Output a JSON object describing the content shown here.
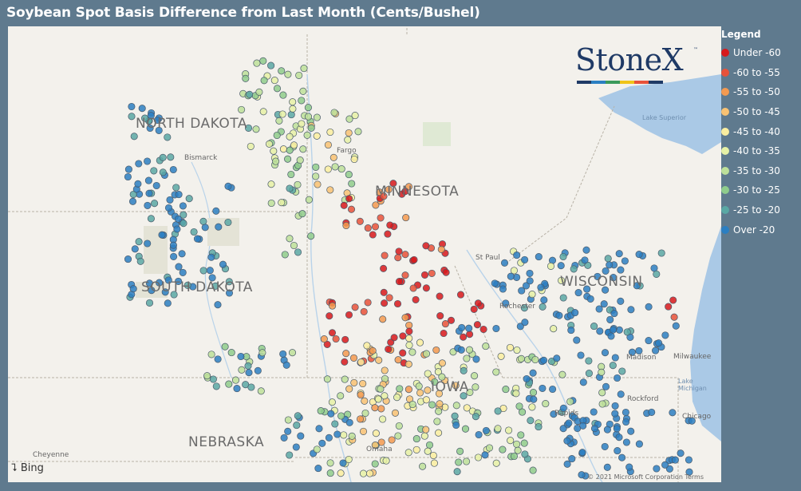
{
  "title": "Soybean Spot Basis Difference from Last Month (Cents/Bushel)",
  "legend": {
    "title": "Legend",
    "items": [
      {
        "label": "Under -60",
        "color": "#d7191c"
      },
      {
        "label": "-60 to -55",
        "color": "#e8523a"
      },
      {
        "label": "-55 to -50",
        "color": "#f39a50"
      },
      {
        "label": "-50 to -45",
        "color": "#f8c273"
      },
      {
        "label": "-45 to -40",
        "color": "#faeea0"
      },
      {
        "label": "-40 to -35",
        "color": "#e6f1a6"
      },
      {
        "label": "-35 to -30",
        "color": "#bde09a"
      },
      {
        "label": "-30 to -25",
        "color": "#8fcc8c"
      },
      {
        "label": "-25 to -20",
        "color": "#5aa8a4"
      },
      {
        "label": "Over -20",
        "color": "#2b7fc2"
      }
    ]
  },
  "map": {
    "state_labels": [
      "NORTH DAKOTA",
      "MINNESOTA",
      "SOUTH DAKOTA",
      "WISCONSIN",
      "NEBRASKA",
      "IOWA"
    ],
    "city_labels": [
      "Bismarck",
      "Fargo",
      "St Paul",
      "Rochester",
      "Madison",
      "Milwaukee",
      "Rockford",
      "Rapids",
      "Chicago",
      "Omaha",
      "Cheyenne"
    ],
    "water_labels": [
      "Lake Superior",
      "Lake Michigan"
    ],
    "attribution": "Bing",
    "copyright": "© 2021 Microsoft Corporation Terms"
  },
  "logo": {
    "text": "StoneX",
    "tm": "™",
    "bar_colors": [
      "#1f3a66",
      "#2b7fc2",
      "#3a9a5b",
      "#f0c419",
      "#e8523a",
      "#1f3a66"
    ]
  }
}
